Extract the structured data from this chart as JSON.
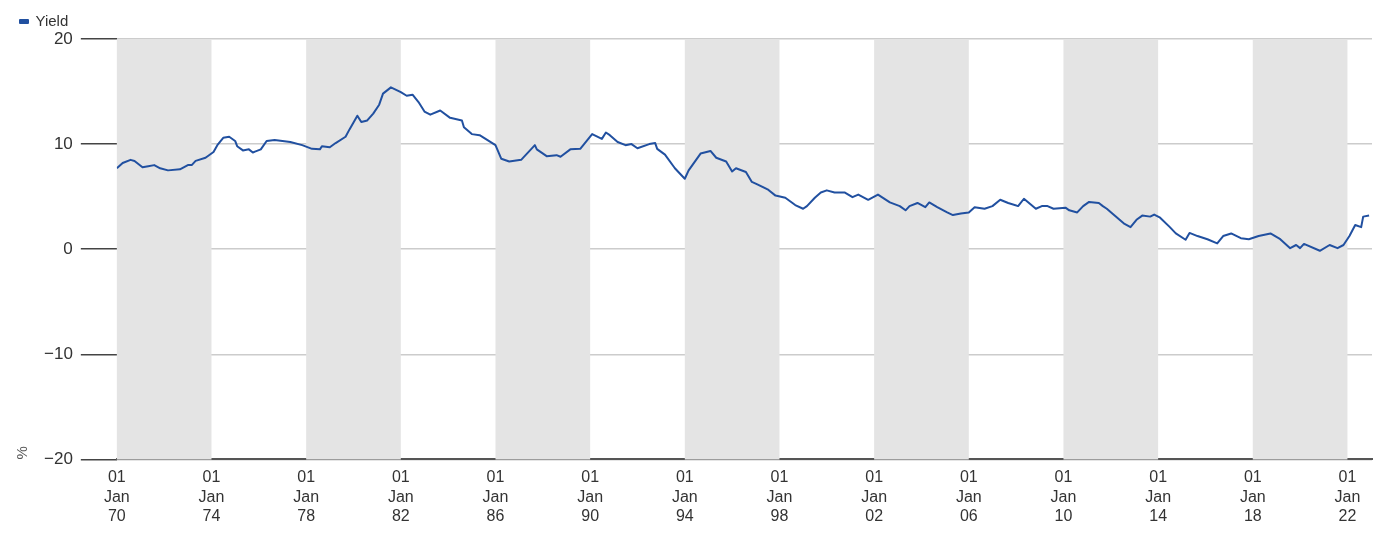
{
  "chart_data": {
    "type": "line",
    "ylabel": "%",
    "legend": "top left",
    "grid": "y",
    "marker": "none",
    "xlim": [
      "1970-01-01",
      "2023-01-15"
    ],
    "ylim": [
      -20,
      20
    ],
    "yticks": [
      {
        "value": -20,
        "label": "−20"
      },
      {
        "value": -10,
        "label": "−10"
      },
      0,
      10,
      20
    ],
    "xticks": [
      {
        "value": "1970-01-01",
        "label": "01 Jan 70"
      },
      {
        "value": "1974-01-01",
        "label": "01 Jan 74"
      },
      {
        "value": "1978-01-01",
        "label": "01 Jan 78"
      },
      {
        "value": "1982-01-01",
        "label": "01 Jan 82"
      },
      {
        "value": "1986-01-01",
        "label": "01 Jan 86"
      },
      {
        "value": "1990-01-01",
        "label": "01 Jan 90"
      },
      {
        "value": "1994-01-01",
        "label": "01 Jan 94"
      },
      {
        "value": "1998-01-01",
        "label": "01 Jan 98"
      },
      {
        "value": "2002-01-01",
        "label": "01 Jan 02"
      },
      {
        "value": "2006-01-01",
        "label": "01 Jan 06"
      },
      {
        "value": "2010-01-01",
        "label": "01 Jan 10"
      },
      {
        "value": "2014-01-01",
        "label": "01 Jan 14"
      },
      {
        "value": "2018-01-01",
        "label": "01 Jan 18"
      },
      {
        "value": "2022-01-01",
        "label": "01 Jan 22"
      }
    ],
    "bands": [
      {
        "axis": "x",
        "from": "1970-01-01",
        "to": "1974-01-01",
        "color": "#e4e4e4"
      },
      {
        "axis": "x",
        "from": "1978-01-01",
        "to": "1982-01-01",
        "color": "#e4e4e4"
      },
      {
        "axis": "x",
        "from": "1986-01-01",
        "to": "1990-01-01",
        "color": "#e4e4e4"
      },
      {
        "axis": "x",
        "from": "1994-01-01",
        "to": "1998-01-01",
        "color": "#e4e4e4"
      },
      {
        "axis": "x",
        "from": "2002-01-01",
        "to": "2006-01-01",
        "color": "#e4e4e4"
      },
      {
        "axis": "x",
        "from": "2010-01-01",
        "to": "2014-01-01",
        "color": "#e4e4e4"
      },
      {
        "axis": "x",
        "from": "2018-01-01",
        "to": "2022-01-01",
        "color": "#e4e4e4"
      }
    ],
    "x": [
      "1970-01",
      "1970-04",
      "1970-08",
      "1970-10",
      "1971-02",
      "1971-05",
      "1971-08",
      "1971-11",
      "1972-03",
      "1972-09",
      "1973-01",
      "1973-03",
      "1973-05",
      "1973-10",
      "1974-02",
      "1974-04",
      "1974-07",
      "1974-10",
      "1975-01",
      "1975-02",
      "1975-05",
      "1975-08",
      "1975-10",
      "1976-02",
      "1976-05",
      "1976-09",
      "1977-05",
      "1977-11",
      "1978-04",
      "1978-08",
      "1978-09",
      "1979-01",
      "1979-04",
      "1979-09",
      "1979-11",
      "1980-03",
      "1980-05",
      "1980-08",
      "1980-11",
      "1981-02",
      "1981-04",
      "1981-08",
      "1982-01",
      "1982-04",
      "1982-07",
      "1982-10",
      "1983-01",
      "1983-04",
      "1983-09",
      "1984-02",
      "1984-08",
      "1984-09",
      "1985-01",
      "1985-05",
      "1986-01",
      "1986-04",
      "1986-08",
      "1987-02",
      "1987-09",
      "1987-10",
      "1988-03",
      "1988-08",
      "1988-10",
      "1989-03",
      "1989-08",
      "1990-02",
      "1990-07",
      "1990-09",
      "1990-11",
      "1991-03",
      "1991-07",
      "1991-10",
      "1992-01",
      "1992-07",
      "1992-10",
      "1992-11",
      "1993-03",
      "1993-08",
      "1993-10",
      "1994-01",
      "1994-03",
      "1994-09",
      "1995-02",
      "1995-05",
      "1995-10",
      "1996-01",
      "1996-03",
      "1996-08",
      "1996-11",
      "1997-02",
      "1997-07",
      "1997-11",
      "1998-04",
      "1998-09",
      "1999-01",
      "1999-03",
      "1999-07",
      "1999-10",
      "2000-01",
      "2000-05",
      "2000-10",
      "2001-02",
      "2001-05",
      "2001-10",
      "2002-03",
      "2002-09",
      "2003-02",
      "2003-05",
      "2003-07",
      "2003-11",
      "2004-03",
      "2004-05",
      "2004-09",
      "2005-02",
      "2005-05",
      "2005-09",
      "2006-01",
      "2006-04",
      "2006-09",
      "2007-01",
      "2007-05",
      "2007-09",
      "2008-02",
      "2008-05",
      "2008-11",
      "2009-02",
      "2009-05",
      "2009-08",
      "2010-02",
      "2010-04",
      "2010-08",
      "2010-11",
      "2011-02",
      "2011-07",
      "2011-09",
      "2011-11",
      "2012-03",
      "2012-08",
      "2012-11",
      "2013-02",
      "2013-05",
      "2013-09",
      "2013-11",
      "2014-02",
      "2014-07",
      "2014-10",
      "2015-03",
      "2015-05",
      "2015-09",
      "2016-02",
      "2016-07",
      "2016-10",
      "2017-02",
      "2017-07",
      "2017-11",
      "2018-04",
      "2018-10",
      "2019-03",
      "2019-08",
      "2019-11",
      "2020-01",
      "2020-03",
      "2020-11",
      "2021-04",
      "2021-08",
      "2021-11",
      "2022-02",
      "2022-05",
      "2022-08",
      "2022-09",
      "2022-12"
    ],
    "series": [
      {
        "name": "Yield",
        "color": "#2150a0",
        "values": [
          7.7,
          8.2,
          8.5,
          8.4,
          7.8,
          7.9,
          8.0,
          7.7,
          7.5,
          7.6,
          8.0,
          8.0,
          8.4,
          8.7,
          9.25,
          9.9,
          10.6,
          10.7,
          10.3,
          9.8,
          9.4,
          9.5,
          9.2,
          9.5,
          10.3,
          10.4,
          10.2,
          9.9,
          9.55,
          9.5,
          9.8,
          9.7,
          10.1,
          10.7,
          11.4,
          12.7,
          12.1,
          12.25,
          12.9,
          13.75,
          14.8,
          15.4,
          14.95,
          14.6,
          14.7,
          14.0,
          13.1,
          12.8,
          13.2,
          12.5,
          12.25,
          11.6,
          10.95,
          10.85,
          9.9,
          8.6,
          8.35,
          8.5,
          9.9,
          9.5,
          8.85,
          8.95,
          8.8,
          9.5,
          9.55,
          10.95,
          10.5,
          11.1,
          10.85,
          10.2,
          9.9,
          10.0,
          9.6,
          10.0,
          10.1,
          9.55,
          9.0,
          7.7,
          7.3,
          6.7,
          7.5,
          9.1,
          9.35,
          8.7,
          8.35,
          7.4,
          7.7,
          7.35,
          6.4,
          6.15,
          5.7,
          5.1,
          4.9,
          4.2,
          3.85,
          4.1,
          4.9,
          5.4,
          5.6,
          5.4,
          5.4,
          4.95,
          5.2,
          4.7,
          5.2,
          4.45,
          4.1,
          3.7,
          4.1,
          4.4,
          4.0,
          4.45,
          4.0,
          3.5,
          3.25,
          3.4,
          3.5,
          4.0,
          3.85,
          4.1,
          4.7,
          4.4,
          4.1,
          4.8,
          3.85,
          4.1,
          4.1,
          3.85,
          3.95,
          3.7,
          3.5,
          4.1,
          4.5,
          4.4,
          4.1,
          3.85,
          3.2,
          2.4,
          2.1,
          2.8,
          3.2,
          3.1,
          3.3,
          3.0,
          2.1,
          1.5,
          0.9,
          1.55,
          1.25,
          0.95,
          0.55,
          1.25,
          1.5,
          1.05,
          0.95,
          1.25,
          1.5,
          0.95,
          0.1,
          0.4,
          0.1,
          0.5,
          -0.15,
          0.4,
          0.1,
          0.4,
          1.25,
          2.3,
          2.1,
          3.1,
          3.2
        ]
      }
    ]
  }
}
